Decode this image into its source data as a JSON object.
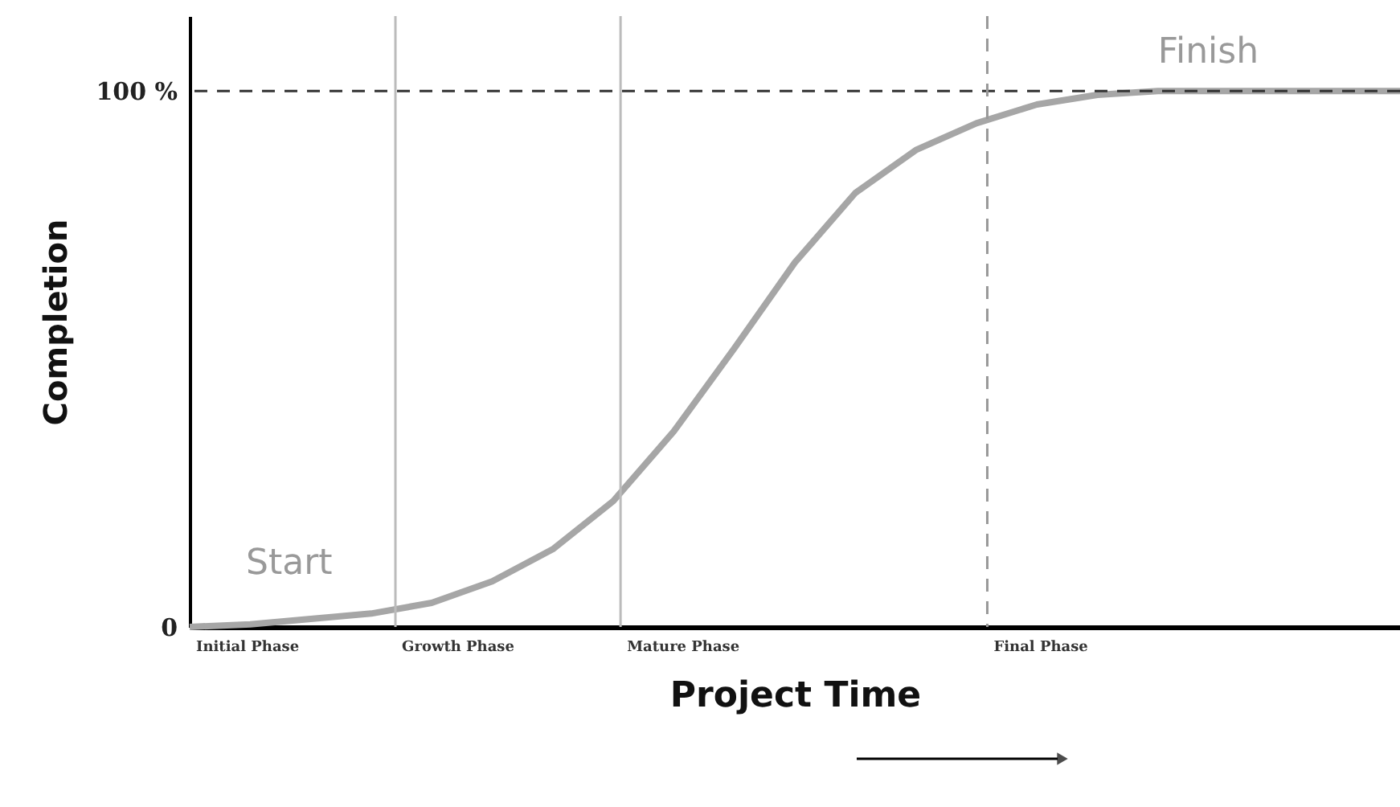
{
  "chart_data": {
    "type": "line",
    "xlabel": "Project Time",
    "ylabel": "Completion",
    "categories": [
      null,
      null,
      null,
      null,
      null,
      null,
      null,
      null,
      null,
      null,
      null,
      null,
      null,
      null,
      null,
      null,
      null,
      null,
      null,
      null,
      null
    ],
    "series": [
      {
        "color": "#a6a6a6",
        "values": [
          0,
          0.5,
          1.5,
          2.5,
          4.5,
          8.5,
          14.5,
          23.5,
          36.5,
          52,
          68,
          81,
          89,
          94,
          97.5,
          99.3,
          100,
          100,
          100,
          100,
          100
        ]
      }
    ],
    "ylim": [
      0,
      114
    ],
    "yticks": [
      0,
      {
        "value": 100,
        "label": "100 %"
      }
    ],
    "tick_labels": "y",
    "ref_lines": [
      {
        "axis": "y",
        "value": 100,
        "color": "#333333",
        "line_style": "dashed"
      }
    ],
    "annotations": [
      "Start",
      "Finish",
      "Initial Phase",
      "Growth Phase",
      "Mature Phase",
      "Final Phase"
    ],
    "grid": false,
    "legend": false,
    "marker": "none",
    "line_style": "solid"
  }
}
